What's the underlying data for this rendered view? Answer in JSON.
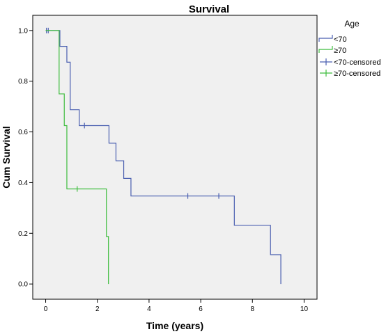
{
  "chart_data": {
    "type": "line",
    "title": "Survival",
    "xlabel": "Time (years)",
    "ylabel": "Cum Survival",
    "xlim": [
      -0.5,
      10.5
    ],
    "ylim": [
      -0.06,
      1.06
    ],
    "x_ticks": [
      0,
      2,
      4,
      6,
      8,
      10
    ],
    "y_ticks": [
      0.0,
      0.2,
      0.4,
      0.6,
      0.8,
      1.0
    ],
    "x_tick_labels": [
      "0",
      "2",
      "4",
      "6",
      "8",
      "10"
    ],
    "y_tick_labels": [
      "0.0",
      "0.2",
      "0.4",
      "0.6",
      "0.8",
      "1.0"
    ],
    "grid": false,
    "legend_title": "Age",
    "legend_position": "right",
    "legend_labels": [
      "<70",
      "≥70",
      "<70-censored",
      "≥70-censored"
    ],
    "series": [
      {
        "name": "<70",
        "color": "#4a5fb0",
        "steps": [
          [
            0,
            1.0
          ],
          [
            0.55,
            0.9375
          ],
          [
            0.82,
            0.875
          ],
          [
            0.95,
            0.6875
          ],
          [
            1.3,
            0.625
          ],
          [
            2.45,
            0.5556
          ],
          [
            2.72,
            0.4861
          ],
          [
            3.02,
            0.4167
          ],
          [
            3.3,
            0.3472
          ],
          [
            7.3,
            0.2315
          ],
          [
            8.7,
            0.1157
          ],
          [
            9.1,
            0.0
          ]
        ],
        "censored": [
          [
            0.03,
            1.0
          ],
          [
            0.1,
            1.0
          ],
          [
            1.5,
            0.625
          ],
          [
            5.5,
            0.3472
          ],
          [
            6.7,
            0.3472
          ]
        ]
      },
      {
        "name": "≥70",
        "color": "#3fbd3f",
        "steps": [
          [
            0,
            1.0
          ],
          [
            0.52,
            0.75
          ],
          [
            0.72,
            0.625
          ],
          [
            0.82,
            0.375
          ],
          [
            2.35,
            0.1875
          ],
          [
            2.43,
            0.0
          ]
        ],
        "censored": [
          [
            1.22,
            0.375
          ]
        ]
      }
    ]
  }
}
